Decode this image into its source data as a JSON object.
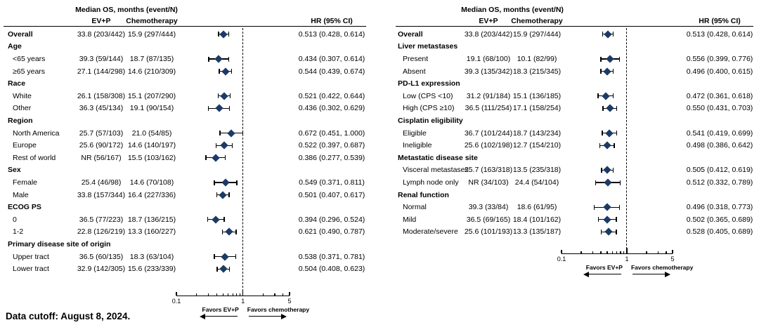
{
  "footer": {
    "data_cutoff": "Data cutoff: August 8, 2024."
  },
  "colors": {
    "marker": "#1b3a66",
    "line": "#000000",
    "text": "#000000"
  },
  "chart_data": [
    {
      "type": "scatter",
      "variant": "forest-plot",
      "title": "",
      "header": {
        "measure": "Median OS, months (event/N)",
        "col_evp": "EV+P",
        "col_chemo": "Chemotherapy",
        "col_hr": "HR (95% CI)"
      },
      "x_axis": {
        "scale": "log",
        "min": 0.1,
        "ref": 1,
        "max": 5,
        "tick_labels": [
          "0.1",
          "1",
          "5"
        ],
        "minor_ticks": [
          0.2,
          0.3,
          0.4,
          0.5,
          0.6,
          0.7,
          0.8,
          0.9,
          2,
          3,
          4
        ],
        "favors_left": "Favors EV+P",
        "favors_right": "Favors chemotherapy"
      },
      "rows": [
        {
          "kind": "data",
          "bold": true,
          "label": "Overall",
          "evp": "33.8 (203/442)",
          "chemo": "15.9 (297/444)",
          "hr": 0.513,
          "ci_low": 0.428,
          "ci_high": 0.614,
          "hr_text": "0.513 (0.428, 0.614)"
        },
        {
          "kind": "group",
          "label": "Age"
        },
        {
          "kind": "data",
          "label": "<65 years",
          "evp": "39.3 (59/144)",
          "chemo": "18.7 (87/135)",
          "hr": 0.434,
          "ci_low": 0.307,
          "ci_high": 0.614,
          "hr_text": "0.434 (0.307, 0.614)"
        },
        {
          "kind": "data",
          "label": "≥65 years",
          "evp": "27.1 (144/298)",
          "chemo": "14.6 (210/309)",
          "hr": 0.544,
          "ci_low": 0.439,
          "ci_high": 0.674,
          "hr_text": "0.544 (0.439, 0.674)"
        },
        {
          "kind": "group",
          "label": "Race"
        },
        {
          "kind": "data",
          "label": "White",
          "evp": "26.1 (158/308)",
          "chemo": "15.1 (207/290)",
          "hr": 0.521,
          "ci_low": 0.422,
          "ci_high": 0.644,
          "hr_text": "0.521 (0.422, 0.644)"
        },
        {
          "kind": "data",
          "label": "Other",
          "evp": "36.3 (45/134)",
          "chemo": "19.1 (90/154)",
          "hr": 0.436,
          "ci_low": 0.302,
          "ci_high": 0.629,
          "hr_text": "0.436 (0.302, 0.629)"
        },
        {
          "kind": "group",
          "label": "Region"
        },
        {
          "kind": "data",
          "label": "North America",
          "evp": "25.7 (57/103)",
          "chemo": "21.0 (54/85)",
          "hr": 0.672,
          "ci_low": 0.451,
          "ci_high": 1.0,
          "hr_text": "0.672 (0.451, 1.000)"
        },
        {
          "kind": "data",
          "label": "Europe",
          "evp": "25.6 (90/172)",
          "chemo": "14.6 (140/197)",
          "hr": 0.522,
          "ci_low": 0.397,
          "ci_high": 0.687,
          "hr_text": "0.522 (0.397, 0.687)"
        },
        {
          "kind": "data",
          "label": "Rest of world",
          "evp": "NR (56/167)",
          "chemo": "15.5 (103/162)",
          "hr": 0.386,
          "ci_low": 0.277,
          "ci_high": 0.539,
          "hr_text": "0.386 (0.277, 0.539)"
        },
        {
          "kind": "group",
          "label": "Sex"
        },
        {
          "kind": "data",
          "label": "Female",
          "evp": "25.4 (46/98)",
          "chemo": "14.6 (70/108)",
          "hr": 0.549,
          "ci_low": 0.371,
          "ci_high": 0.811,
          "hr_text": "0.549 (0.371, 0.811)"
        },
        {
          "kind": "data",
          "label": "Male",
          "evp": "33.8 (157/344)",
          "chemo": "16.4 (227/336)",
          "hr": 0.501,
          "ci_low": 0.407,
          "ci_high": 0.617,
          "hr_text": "0.501 (0.407, 0.617)"
        },
        {
          "kind": "group",
          "label": "ECOG PS"
        },
        {
          "kind": "data",
          "label": "0",
          "evp": "36.5 (77/223)",
          "chemo": "18.7 (136/215)",
          "hr": 0.394,
          "ci_low": 0.296,
          "ci_high": 0.524,
          "hr_text": "0.394 (0.296, 0.524)"
        },
        {
          "kind": "data",
          "label": "1-2",
          "evp": "22.8 (126/219)",
          "chemo": "13.3 (160/227)",
          "hr": 0.621,
          "ci_low": 0.49,
          "ci_high": 0.787,
          "hr_text": "0.621 (0.490, 0.787)"
        },
        {
          "kind": "group",
          "label": "Primary disease site of origin"
        },
        {
          "kind": "data",
          "label": "Upper tract",
          "evp": "36.5 (60/135)",
          "chemo": "18.3 (63/104)",
          "hr": 0.538,
          "ci_low": 0.371,
          "ci_high": 0.781,
          "hr_text": "0.538 (0.371, 0.781)"
        },
        {
          "kind": "data",
          "label": "Lower tract",
          "evp": "32.9 (142/305)",
          "chemo": "15.6 (233/339)",
          "hr": 0.504,
          "ci_low": 0.408,
          "ci_high": 0.623,
          "hr_text": "0.504 (0.408, 0.623)"
        }
      ]
    },
    {
      "type": "scatter",
      "variant": "forest-plot",
      "title": "",
      "header": {
        "measure": "Median OS, months (event/N)",
        "col_evp": "EV+P",
        "col_chemo": "Chemotherapy",
        "col_hr": "HR (95% CI)"
      },
      "x_axis": {
        "scale": "log",
        "min": 0.1,
        "ref": 1,
        "max": 5,
        "tick_labels": [
          "0.1",
          "1",
          "5"
        ],
        "minor_ticks": [
          0.2,
          0.3,
          0.4,
          0.5,
          0.6,
          0.7,
          0.8,
          0.9,
          2,
          3,
          4
        ],
        "favors_left": "Favors EV+P",
        "favors_right": "Favors chemotherapy"
      },
      "rows": [
        {
          "kind": "data",
          "bold": true,
          "label": "Overall",
          "evp": "33.8 (203/442)",
          "chemo": "15.9 (297/444)",
          "hr": 0.513,
          "ci_low": 0.428,
          "ci_high": 0.614,
          "hr_text": "0.513 (0.428, 0.614)"
        },
        {
          "kind": "group",
          "label": "Liver metastases"
        },
        {
          "kind": "data",
          "label": "Present",
          "evp": "19.1 (68/100)",
          "chemo": "10.1 (82/99)",
          "hr": 0.556,
          "ci_low": 0.399,
          "ci_high": 0.776,
          "hr_text": "0.556 (0.399, 0.776)"
        },
        {
          "kind": "data",
          "label": "Absent",
          "evp": "39.3 (135/342)",
          "chemo": "18.3 (215/345)",
          "hr": 0.496,
          "ci_low": 0.4,
          "ci_high": 0.615,
          "hr_text": "0.496 (0.400, 0.615)"
        },
        {
          "kind": "group",
          "label": "PD-L1 expression"
        },
        {
          "kind": "data",
          "label": "Low (CPS <10)",
          "evp": "31.2 (91/184)",
          "chemo": "15.1 (136/185)",
          "hr": 0.472,
          "ci_low": 0.361,
          "ci_high": 0.618,
          "hr_text": "0.472 (0.361, 0.618)"
        },
        {
          "kind": "data",
          "label": "High (CPS ≥10)",
          "evp": "36.5 (111/254)",
          "chemo": "17.1 (158/254)",
          "hr": 0.55,
          "ci_low": 0.431,
          "ci_high": 0.703,
          "hr_text": "0.550 (0.431, 0.703)"
        },
        {
          "kind": "group",
          "label": "Cisplatin eligibility"
        },
        {
          "kind": "data",
          "label": "Eligible",
          "evp": "36.7 (101/244)",
          "chemo": "18.7 (143/234)",
          "hr": 0.541,
          "ci_low": 0.419,
          "ci_high": 0.699,
          "hr_text": "0.541 (0.419, 0.699)"
        },
        {
          "kind": "data",
          "label": "Ineligible",
          "evp": "25.6 (102/198)",
          "chemo": "12.7 (154/210)",
          "hr": 0.498,
          "ci_low": 0.386,
          "ci_high": 0.642,
          "hr_text": "0.498 (0.386, 0.642)"
        },
        {
          "kind": "group",
          "label": "Metastatic disease site"
        },
        {
          "kind": "data",
          "label": "Visceral metastases",
          "evp": "25.7 (163/318)",
          "chemo": "13.5 (235/318)",
          "hr": 0.505,
          "ci_low": 0.412,
          "ci_high": 0.619,
          "hr_text": "0.505 (0.412, 0.619)"
        },
        {
          "kind": "data",
          "label": "Lymph node only",
          "evp": "NR (34/103)",
          "chemo": "24.4 (54/104)",
          "hr": 0.512,
          "ci_low": 0.332,
          "ci_high": 0.789,
          "hr_text": "0.512 (0.332, 0.789)"
        },
        {
          "kind": "group",
          "label": "Renal function"
        },
        {
          "kind": "data",
          "label": "Normal",
          "evp": "39.3 (33/84)",
          "chemo": "18.6 (61/95)",
          "hr": 0.496,
          "ci_low": 0.318,
          "ci_high": 0.773,
          "hr_text": "0.496 (0.318, 0.773)"
        },
        {
          "kind": "data",
          "label": "Mild",
          "evp": "36.5 (69/165)",
          "chemo": "18.4 (101/162)",
          "hr": 0.502,
          "ci_low": 0.365,
          "ci_high": 0.689,
          "hr_text": "0.502 (0.365, 0.689)"
        },
        {
          "kind": "data",
          "label": "Moderate/severe",
          "evp": "25.6 (101/193)",
          "chemo": "13.3 (135/187)",
          "hr": 0.528,
          "ci_low": 0.405,
          "ci_high": 0.689,
          "hr_text": "0.528 (0.405, 0.689)"
        }
      ]
    }
  ]
}
